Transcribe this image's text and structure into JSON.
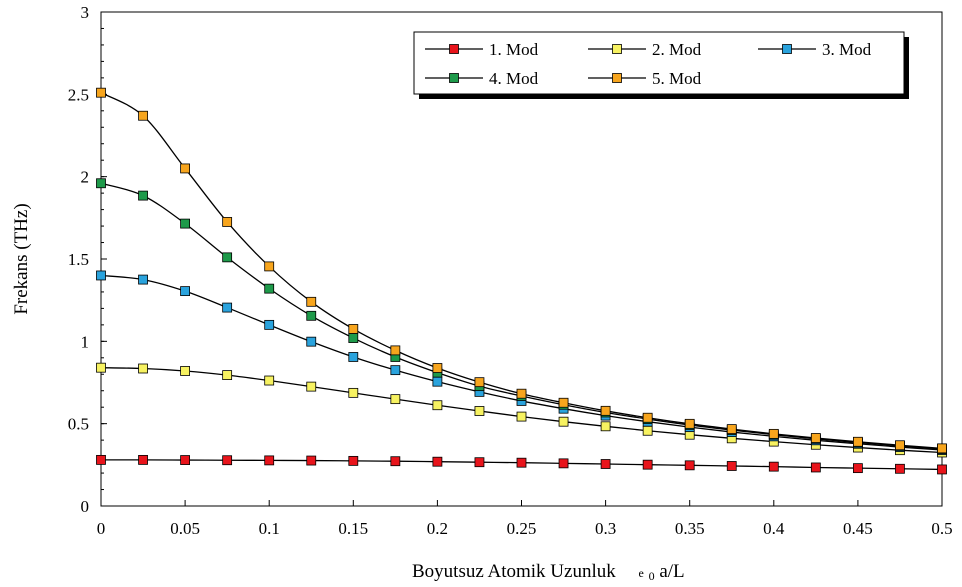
{
  "chart_data": {
    "type": "line",
    "xlabel": "Boyutsuz Atomik Uzunluk",
    "xlabel_symbol": {
      "base": "e",
      "subscript": "0",
      "suffix": "a/L"
    },
    "ylabel": "Frekans (THz)",
    "xlim": [
      0,
      0.5
    ],
    "ylim": [
      0,
      3
    ],
    "xticks": [
      0,
      0.05,
      0.1,
      0.15,
      0.2,
      0.25,
      0.3,
      0.35,
      0.4,
      0.45,
      0.5
    ],
    "xtick_labels": [
      "0",
      "0.05",
      "0.1",
      "0.15",
      "0.2",
      "0.25",
      "0.3",
      "0.35",
      "0.4",
      "0.45",
      "0.5"
    ],
    "yticks": [
      0,
      0.5,
      1,
      1.5,
      2,
      2.5,
      3
    ],
    "ytick_labels": [
      "0",
      "0.5",
      "1",
      "1.5",
      "2",
      "2.5",
      "3"
    ],
    "grid": false,
    "legend_position": "top-right",
    "x": [
      0,
      0.025,
      0.05,
      0.075,
      0.1,
      0.125,
      0.15,
      0.175,
      0.2,
      0.225,
      0.25,
      0.275,
      0.3,
      0.325,
      0.35,
      0.375,
      0.4,
      0.425,
      0.45,
      0.475,
      0.5
    ],
    "series": [
      {
        "name": "1. Mod",
        "color": "#e8141b",
        "values": [
          0.28,
          0.28,
          0.279,
          0.278,
          0.277,
          0.276,
          0.274,
          0.272,
          0.269,
          0.266,
          0.263,
          0.259,
          0.255,
          0.251,
          0.247,
          0.243,
          0.239,
          0.234,
          0.23,
          0.226,
          0.222
        ]
      },
      {
        "name": "2. Mod",
        "color": "#f7f261",
        "values": [
          0.84,
          0.835,
          0.82,
          0.795,
          0.762,
          0.725,
          0.687,
          0.649,
          0.612,
          0.577,
          0.543,
          0.512,
          0.484,
          0.457,
          0.433,
          0.411,
          0.391,
          0.372,
          0.355,
          0.339,
          0.325
        ]
      },
      {
        "name": "3. Mod",
        "color": "#2aa3dd",
        "values": [
          1.4,
          1.375,
          1.305,
          1.205,
          1.1,
          0.998,
          0.905,
          0.825,
          0.755,
          0.693,
          0.638,
          0.591,
          0.549,
          0.512,
          0.479,
          0.449,
          0.423,
          0.399,
          0.378,
          0.358,
          0.34
        ]
      },
      {
        "name": "4. Mod",
        "color": "#1e9a4a",
        "values": [
          1.96,
          1.885,
          1.715,
          1.51,
          1.32,
          1.155,
          1.02,
          0.905,
          0.81,
          0.728,
          0.668,
          0.615,
          0.568,
          0.528,
          0.492,
          0.461,
          0.433,
          0.408,
          0.385,
          0.365,
          0.346
        ]
      },
      {
        "name": "5. Mod",
        "color": "#f7a51d",
        "values": [
          2.51,
          2.37,
          2.05,
          1.725,
          1.455,
          1.24,
          1.075,
          0.945,
          0.838,
          0.752,
          0.682,
          0.627,
          0.578,
          0.536,
          0.499,
          0.467,
          0.438,
          0.413,
          0.39,
          0.369,
          0.35
        ]
      }
    ]
  }
}
